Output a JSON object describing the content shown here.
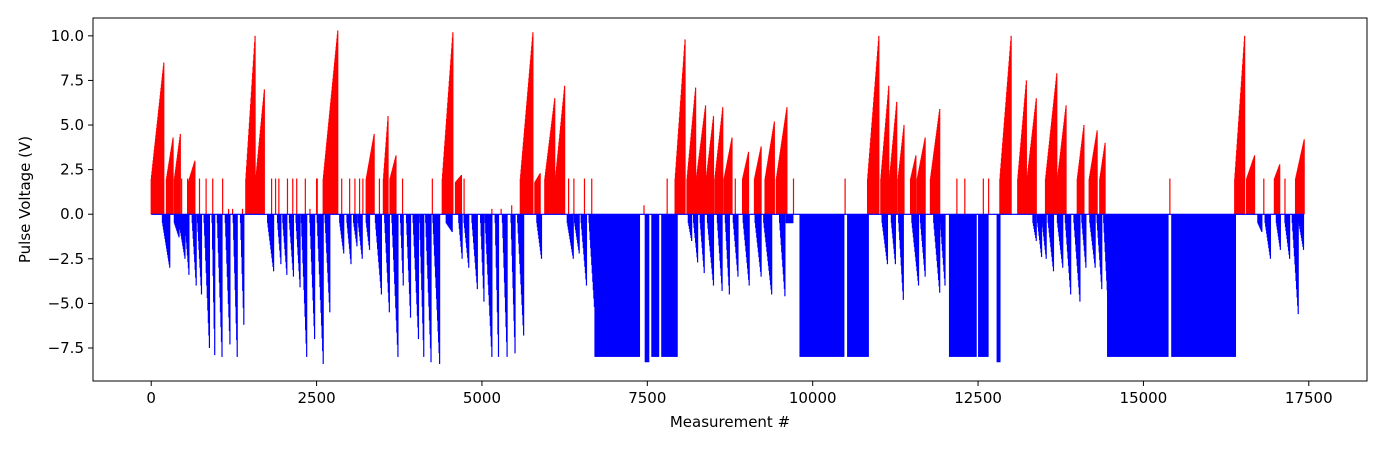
{
  "chart_data": {
    "type": "bar",
    "title": "",
    "xlabel": "Measurement #",
    "ylabel": "Pulse Voltage (V)",
    "xlim": [
      -880,
      18380
    ],
    "ylim": [
      -9.35,
      11.0
    ],
    "x_ticks": [
      0,
      2500,
      5000,
      7500,
      10000,
      12500,
      15000,
      17500
    ],
    "x_tick_labels": [
      "0",
      "2500",
      "5000",
      "7500",
      "10000",
      "12500",
      "15000",
      "17500"
    ],
    "y_ticks": [
      -7.5,
      -5.0,
      -2.5,
      0.0,
      2.5,
      5.0,
      7.5,
      10.0
    ],
    "y_tick_labels": [
      "−7.5",
      "−5.0",
      "−2.5",
      "0.0",
      "2.5",
      "5.0",
      "7.5",
      "10.0"
    ],
    "grid": false,
    "colors": {
      "positive": "#ff0000",
      "negative": "#0000ff",
      "axes": "#000000"
    },
    "series": [
      {
        "color": "#ff0000",
        "note_kind": "positive pulses",
        "ramps": [
          [
            0,
            190,
            2.0,
            8.5
          ],
          [
            230,
            330,
            2.0,
            4.3
          ],
          [
            350,
            440,
            2.0,
            4.5
          ],
          [
            560,
            660,
            1.8,
            3.0
          ],
          [
            1430,
            1570,
            2.0,
            10.0
          ],
          [
            1580,
            1710,
            2.0,
            7.0
          ],
          [
            2500,
            2510,
            2.0,
            2.0
          ],
          [
            2600,
            2820,
            2.0,
            10.3
          ],
          [
            3250,
            3370,
            2.0,
            4.5
          ],
          [
            3510,
            3580,
            2.0,
            5.5
          ],
          [
            3610,
            3700,
            2.0,
            3.3
          ],
          [
            4400,
            4560,
            2.0,
            10.2
          ],
          [
            4600,
            4690,
            1.8,
            2.2
          ],
          [
            5580,
            5770,
            2.0,
            10.2
          ],
          [
            5800,
            5880,
            1.8,
            2.3
          ],
          [
            5950,
            6100,
            2.0,
            6.5
          ],
          [
            6110,
            6250,
            2.0,
            7.2
          ],
          [
            7920,
            8070,
            2.0,
            9.8
          ],
          [
            8100,
            8230,
            2.0,
            7.1
          ],
          [
            8240,
            8380,
            2.0,
            6.1
          ],
          [
            8390,
            8500,
            2.0,
            5.5
          ],
          [
            8520,
            8640,
            2.0,
            6.0
          ],
          [
            8660,
            8780,
            2.0,
            4.3
          ],
          [
            8940,
            9030,
            2.0,
            3.5
          ],
          [
            9120,
            9220,
            2.0,
            3.8
          ],
          [
            9280,
            9420,
            2.0,
            5.2
          ],
          [
            9450,
            9610,
            2.0,
            6.0
          ],
          [
            10830,
            11000,
            2.0,
            10.0
          ],
          [
            11030,
            11150,
            2.0,
            7.2
          ],
          [
            11160,
            11270,
            2.0,
            6.3
          ],
          [
            11290,
            11380,
            2.0,
            5.0
          ],
          [
            11480,
            11560,
            2.0,
            3.3
          ],
          [
            11580,
            11700,
            2.0,
            4.3
          ],
          [
            11780,
            11920,
            2.0,
            5.9
          ],
          [
            12830,
            13000,
            2.0,
            10.0
          ],
          [
            13100,
            13230,
            2.0,
            7.5
          ],
          [
            13240,
            13380,
            2.0,
            6.5
          ],
          [
            13520,
            13690,
            2.0,
            7.9
          ],
          [
            13700,
            13830,
            2.0,
            6.1
          ],
          [
            14000,
            14100,
            2.0,
            5.0
          ],
          [
            14180,
            14300,
            2.0,
            4.7
          ],
          [
            14340,
            14420,
            2.0,
            4.0
          ],
          [
            16380,
            16530,
            2.0,
            10.0
          ],
          [
            16560,
            16680,
            2.0,
            3.3
          ],
          [
            16980,
            17060,
            2.0,
            2.8
          ],
          [
            17300,
            17430,
            2.0,
            4.2
          ]
        ],
        "spikes": [
          [
            160,
            2.0
          ],
          [
            280,
            2.0
          ],
          [
            460,
            2.0
          ],
          [
            550,
            2.0
          ],
          [
            730,
            2.0
          ],
          [
            830,
            2.0
          ],
          [
            930,
            2.0
          ],
          [
            1080,
            2.0
          ],
          [
            1170,
            0.3
          ],
          [
            1230,
            0.3
          ],
          [
            1380,
            0.3
          ],
          [
            1820,
            2.0
          ],
          [
            1880,
            2.0
          ],
          [
            1930,
            2.0
          ],
          [
            2060,
            2.0
          ],
          [
            2140,
            2.0
          ],
          [
            2200,
            2.0
          ],
          [
            2330,
            2.0
          ],
          [
            2400,
            0.3
          ],
          [
            2880,
            2.0
          ],
          [
            3000,
            2.0
          ],
          [
            3080,
            2.0
          ],
          [
            3150,
            2.0
          ],
          [
            3200,
            2.0
          ],
          [
            3450,
            2.0
          ],
          [
            3800,
            2.0
          ],
          [
            4250,
            2.0
          ],
          [
            4730,
            2.0
          ],
          [
            5150,
            0.3
          ],
          [
            5290,
            0.3
          ],
          [
            5450,
            0.5
          ],
          [
            5660,
            0.3
          ],
          [
            6310,
            2.0
          ],
          [
            6390,
            2.0
          ],
          [
            6550,
            2.0
          ],
          [
            6660,
            2.0
          ],
          [
            7450,
            0.5
          ],
          [
            7800,
            2.0
          ],
          [
            8830,
            2.0
          ],
          [
            9710,
            2.0
          ],
          [
            10490,
            2.0
          ],
          [
            12180,
            2.0
          ],
          [
            12300,
            2.0
          ],
          [
            12580,
            2.0
          ],
          [
            12660,
            2.0
          ],
          [
            15400,
            2.0
          ],
          [
            16820,
            2.0
          ],
          [
            17140,
            2.0
          ]
        ]
      },
      {
        "color": "#0000ff",
        "note_kind": "negative pulses",
        "ramps": [
          [
            170,
            280,
            -0.5,
            -3.0
          ],
          [
            350,
            420,
            -0.5,
            -1.3
          ],
          [
            420,
            510,
            -0.5,
            -2.5
          ],
          [
            510,
            570,
            -0.5,
            -3.4
          ],
          [
            620,
            680,
            -0.5,
            -4.0
          ],
          [
            700,
            760,
            -0.5,
            -4.5
          ],
          [
            800,
            880,
            -0.5,
            -7.5
          ],
          [
            920,
            960,
            -0.5,
            -7.9
          ],
          [
            1000,
            1070,
            -0.5,
            -8.0
          ],
          [
            1120,
            1190,
            -0.5,
            -7.3
          ],
          [
            1240,
            1300,
            -0.5,
            -8.0
          ],
          [
            1350,
            1400,
            -0.5,
            -6.2
          ],
          [
            1760,
            1850,
            -0.5,
            -3.2
          ],
          [
            1910,
            1960,
            -0.5,
            -2.8
          ],
          [
            1990,
            2050,
            -0.5,
            -3.4
          ],
          [
            2090,
            2150,
            -0.5,
            -3.5
          ],
          [
            2190,
            2250,
            -0.5,
            -4.1
          ],
          [
            2270,
            2350,
            -0.5,
            -8.0
          ],
          [
            2400,
            2470,
            -0.5,
            -7.0
          ],
          [
            2510,
            2600,
            -0.5,
            -8.4
          ],
          [
            2630,
            2700,
            -0.5,
            -5.5
          ],
          [
            2850,
            2910,
            -0.5,
            -2.2
          ],
          [
            2960,
            3020,
            -0.5,
            -2.8
          ],
          [
            3060,
            3110,
            -0.5,
            -1.8
          ],
          [
            3130,
            3190,
            -0.5,
            -2.5
          ],
          [
            3250,
            3300,
            -0.5,
            -2.0
          ],
          [
            3390,
            3480,
            -0.5,
            -4.5
          ],
          [
            3530,
            3600,
            -0.5,
            -5.5
          ],
          [
            3640,
            3730,
            -0.5,
            -8.0
          ],
          [
            3770,
            3810,
            -0.5,
            -4.0
          ],
          [
            3860,
            3920,
            -0.5,
            -5.8
          ],
          [
            3960,
            4040,
            -0.5,
            -7.0
          ],
          [
            4060,
            4120,
            -0.5,
            -8.0
          ],
          [
            4150,
            4230,
            -0.5,
            -8.3
          ],
          [
            4260,
            4360,
            -0.5,
            -8.4
          ],
          [
            4460,
            4550,
            -0.5,
            -1.0
          ],
          [
            4650,
            4700,
            -0.5,
            -2.5
          ],
          [
            4730,
            4800,
            -0.5,
            -3.0
          ],
          [
            4850,
            4930,
            -0.5,
            -4.2
          ],
          [
            4980,
            5030,
            -0.5,
            -4.9
          ],
          [
            5050,
            5150,
            -0.5,
            -8.0
          ],
          [
            5200,
            5250,
            -0.5,
            -8.0
          ],
          [
            5310,
            5380,
            -0.5,
            -8.0
          ],
          [
            5440,
            5500,
            -0.5,
            -7.8
          ],
          [
            5540,
            5630,
            -0.5,
            -6.8
          ],
          [
            5830,
            5900,
            -0.5,
            -2.5
          ],
          [
            6290,
            6380,
            -0.5,
            -2.5
          ],
          [
            6400,
            6470,
            -0.5,
            -2.2
          ],
          [
            6500,
            6580,
            -0.5,
            -4.0
          ],
          [
            6620,
            6700,
            -0.5,
            -5.2
          ]
        ],
        "plateaus": [
          [
            6700,
            7390,
            -8.0
          ],
          [
            7460,
            7530,
            -8.3
          ],
          [
            7560,
            7680,
            -8.0
          ],
          [
            7710,
            7960,
            -8.0
          ],
          [
            9800,
            10480,
            -8.0
          ],
          [
            10520,
            10850,
            -8.0
          ],
          [
            12060,
            12480,
            -8.0
          ],
          [
            12500,
            12660,
            -8.0
          ],
          [
            12780,
            12840,
            -8.3
          ],
          [
            14450,
            15380,
            -8.0
          ],
          [
            15420,
            16400,
            -8.0
          ]
        ],
        "ramps_b": [
          [
            8120,
            8170,
            -0.5,
            -1.5
          ],
          [
            8200,
            8260,
            -0.5,
            -2.7
          ],
          [
            8300,
            8360,
            -0.5,
            -3.3
          ],
          [
            8410,
            8500,
            -0.5,
            -4.0
          ],
          [
            8560,
            8630,
            -0.5,
            -4.3
          ],
          [
            8680,
            8740,
            -0.5,
            -4.5
          ],
          [
            8800,
            8870,
            -0.5,
            -3.5
          ],
          [
            8950,
            9040,
            -0.5,
            -4.0
          ],
          [
            9130,
            9220,
            -0.5,
            -3.5
          ],
          [
            9260,
            9380,
            -0.5,
            -4.5
          ],
          [
            9500,
            9580,
            -0.5,
            -4.6
          ],
          [
            9600,
            9700,
            -0.5,
            -0.5
          ],
          [
            11050,
            11130,
            -0.5,
            -2.8
          ],
          [
            11190,
            11250,
            -0.5,
            -2.8
          ],
          [
            11300,
            11370,
            -0.5,
            -4.8
          ],
          [
            11500,
            11600,
            -0.5,
            -4.0
          ],
          [
            11630,
            11700,
            -0.5,
            -3.5
          ],
          [
            11830,
            11920,
            -0.5,
            -4.4
          ],
          [
            11930,
            12000,
            -0.5,
            -4.0
          ],
          [
            13330,
            13380,
            -0.5,
            -1.5
          ],
          [
            13400,
            13460,
            -0.5,
            -2.4
          ],
          [
            13470,
            13530,
            -0.5,
            -2.5
          ],
          [
            13560,
            13640,
            -0.5,
            -3.2
          ],
          [
            13700,
            13780,
            -0.5,
            -3.0
          ],
          [
            13820,
            13900,
            -0.5,
            -4.5
          ],
          [
            13950,
            14040,
            -0.5,
            -4.9
          ],
          [
            14070,
            14130,
            -0.5,
            -3.0
          ],
          [
            14190,
            14270,
            -0.5,
            -3.0
          ],
          [
            14300,
            14370,
            -0.5,
            -4.2
          ],
          [
            14400,
            14460,
            -0.5,
            -4.8
          ],
          [
            16730,
            16790,
            -0.5,
            -1.0
          ],
          [
            16840,
            16920,
            -0.5,
            -2.5
          ],
          [
            17010,
            17070,
            -0.5,
            -2.0
          ],
          [
            17140,
            17210,
            -0.5,
            -2.5
          ],
          [
            17250,
            17340,
            -0.5,
            -5.6
          ],
          [
            17350,
            17420,
            -0.5,
            -2.0
          ]
        ]
      }
    ]
  }
}
